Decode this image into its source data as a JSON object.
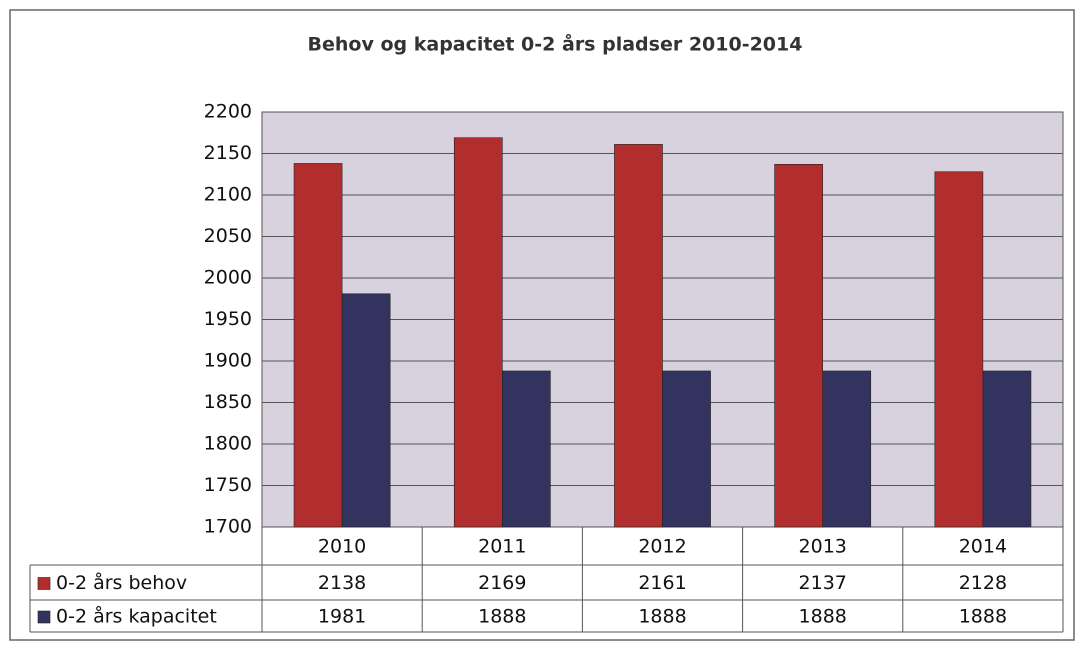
{
  "chart_data": {
    "type": "bar",
    "title": "Behov og kapacitet 0-2 års pladser 2010-2014",
    "categories": [
      "2010",
      "2011",
      "2012",
      "2013",
      "2014"
    ],
    "series": [
      {
        "name": "0-2 års behov",
        "color": "#b22e2e",
        "values": [
          2138,
          2169,
          2161,
          2137,
          2128
        ]
      },
      {
        "name": "0-2 års kapacitet",
        "color": "#33335f",
        "values": [
          1981,
          1888,
          1888,
          1888,
          1888
        ]
      }
    ],
    "ylim": [
      1700,
      2200
    ],
    "yticks": [
      1700,
      1750,
      1800,
      1850,
      1900,
      1950,
      2000,
      2050,
      2100,
      2150,
      2200
    ],
    "grid": true
  }
}
